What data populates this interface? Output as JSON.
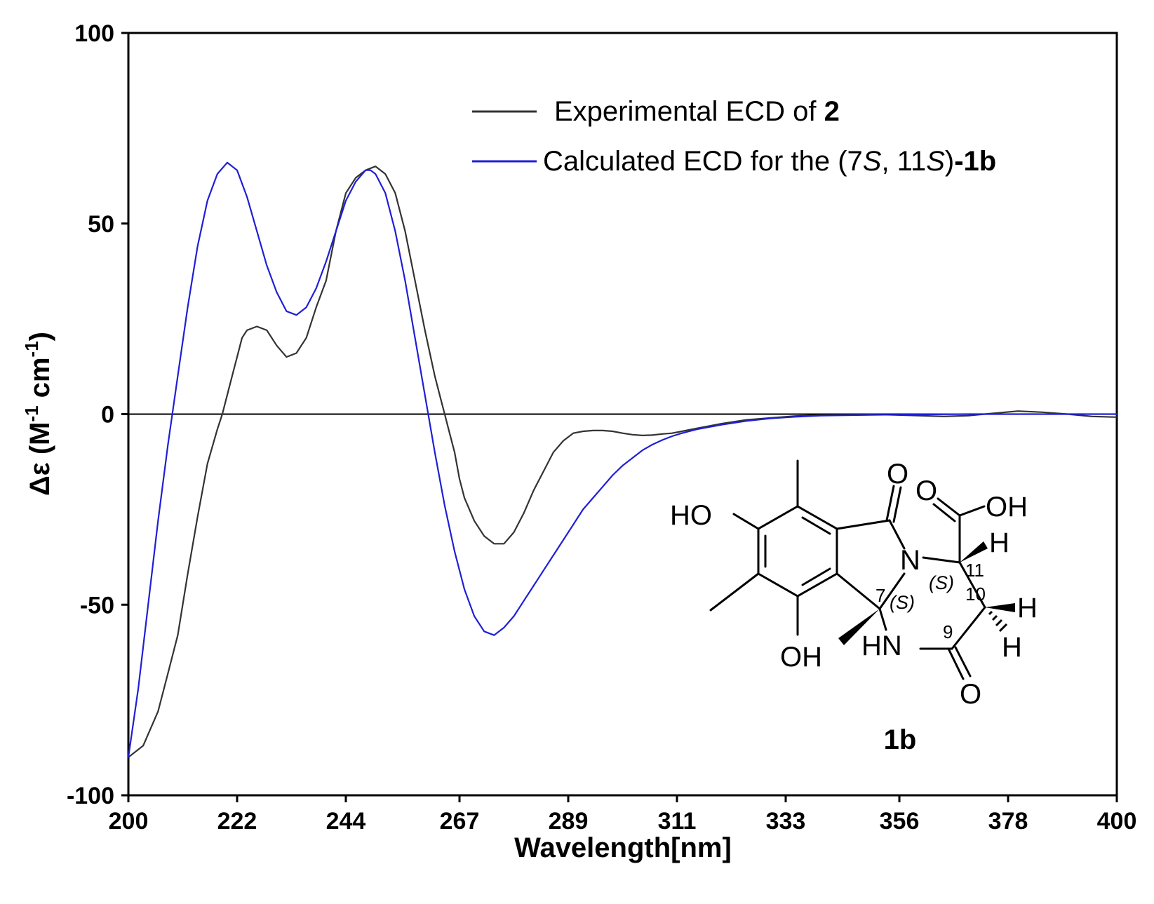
{
  "chart_data": {
    "type": "line",
    "xlabel": "Wavelength[nm]",
    "ylabel": {
      "prefix": "Δε (M",
      "sup1": "-1",
      "mid": " cm",
      "sup2": "-1",
      "suffix": ")"
    },
    "xlim": [
      200,
      400
    ],
    "ylim": [
      -100,
      100
    ],
    "x_ticks": [
      200,
      222,
      244,
      267,
      289,
      311,
      333,
      356,
      378,
      400
    ],
    "y_ticks": [
      -100,
      -50,
      0,
      50,
      100
    ],
    "zero_line": true,
    "grid": false,
    "legend_position": "top-right",
    "series": [
      {
        "key": "experimental",
        "legend": {
          "text": "Experimental ECD of ",
          "bold": "2"
        },
        "color": "#333333",
        "x": [
          200,
          203,
          206,
          208,
          210,
          212,
          214,
          216,
          218,
          219,
          220,
          221,
          222,
          223,
          224,
          226,
          228,
          230,
          232,
          234,
          236,
          238,
          240,
          242,
          244,
          246,
          248,
          250,
          252,
          254,
          256,
          258,
          260,
          262,
          263,
          264,
          265,
          266,
          267,
          268,
          270,
          272,
          274,
          276,
          278,
          280,
          282,
          284,
          286,
          288,
          290,
          292,
          294,
          296,
          298,
          300,
          302,
          304,
          306,
          308,
          310,
          312,
          314,
          316,
          318,
          320,
          325,
          330,
          335,
          340,
          345,
          350,
          355,
          360,
          365,
          370,
          375,
          380,
          385,
          390,
          395,
          400
        ],
        "y": [
          -90,
          -87,
          -78,
          -68,
          -58,
          -42,
          -27,
          -13,
          -4,
          0,
          5,
          10,
          15,
          20,
          22,
          23,
          22,
          18,
          15,
          16,
          20,
          28,
          35,
          48,
          58,
          62,
          64,
          65,
          63,
          58,
          48,
          35,
          22,
          10,
          5,
          0,
          -5,
          -10,
          -17,
          -22,
          -28,
          -32,
          -34,
          -34,
          -31,
          -26,
          -20,
          -15,
          -10,
          -7,
          -5,
          -4.5,
          -4.3,
          -4.3,
          -4.5,
          -5,
          -5.4,
          -5.6,
          -5.5,
          -5.2,
          -5,
          -4.5,
          -4,
          -3.5,
          -3,
          -2.5,
          -1.5,
          -1,
          -0.5,
          -0.3,
          -0.2,
          -0.1,
          -0.2,
          -0.4,
          -0.6,
          -0.4,
          0.2,
          0.8,
          0.5,
          0,
          -0.6,
          -0.8
        ]
      },
      {
        "key": "calculated",
        "legend": {
          "text": "Calculated ECD for the (7",
          "italic1": "S",
          "mid": ", 11",
          "italic2": "S",
          "close": ")",
          "bold": "-1b"
        },
        "color": "#1f1fd6",
        "x": [
          200,
          202,
          204,
          206,
          208,
          210,
          212,
          214,
          216,
          218,
          220,
          222,
          224,
          226,
          228,
          230,
          232,
          234,
          236,
          238,
          240,
          242,
          244,
          246,
          248,
          249,
          250,
          252,
          254,
          256,
          258,
          260,
          262,
          264,
          266,
          268,
          270,
          272,
          274,
          276,
          278,
          280,
          282,
          284,
          286,
          288,
          290,
          292,
          294,
          296,
          298,
          300,
          302,
          304,
          306,
          308,
          310,
          312,
          315,
          320,
          325,
          330,
          335,
          340,
          350,
          360,
          370,
          380,
          390,
          400
        ],
        "y": [
          -90,
          -72,
          -50,
          -28,
          -8,
          10,
          28,
          44,
          56,
          63,
          66,
          64,
          57,
          48,
          39,
          32,
          27,
          26,
          28,
          33,
          40,
          48,
          56,
          61,
          64,
          64,
          63,
          58,
          48,
          35,
          20,
          5,
          -10,
          -24,
          -36,
          -46,
          -53,
          -57,
          -58,
          -56,
          -53,
          -49,
          -45,
          -41,
          -37,
          -33,
          -29,
          -25,
          -22,
          -19,
          -16,
          -13.5,
          -11.5,
          -9.5,
          -8,
          -6.8,
          -5.8,
          -5,
          -4,
          -2.8,
          -1.8,
          -1.1,
          -0.7,
          -0.4,
          -0.2,
          -0.1,
          0,
          0,
          0,
          0
        ]
      }
    ]
  },
  "structure": {
    "compound_label": "1b",
    "atoms": {
      "ho": "HO",
      "oh_bottom": "OH",
      "oh_acid": "OH",
      "o_lactam": "O",
      "o_acid": "O",
      "o_amide": "O",
      "n": "N",
      "hn": "HN",
      "h11": "H",
      "h10a": "H",
      "h10b": "H"
    },
    "numbers": {
      "c7": "7",
      "c9": "9",
      "c10": "10",
      "c11": "11"
    },
    "stereo": {
      "s7": "(S)",
      "s11": "(S)"
    }
  }
}
